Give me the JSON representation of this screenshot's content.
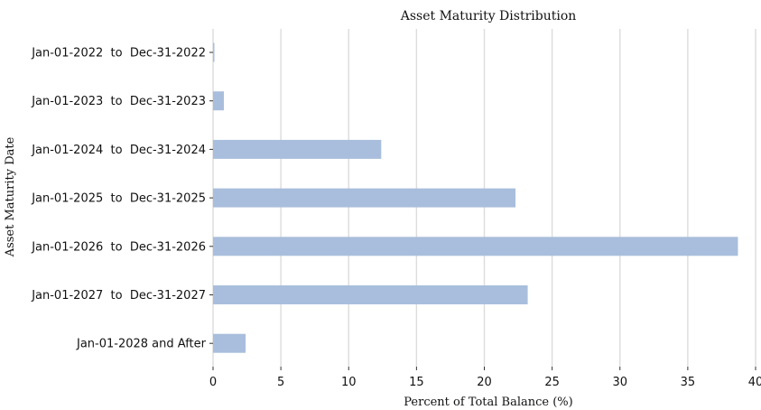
{
  "chart_data": {
    "type": "bar",
    "orientation": "horizontal",
    "title": "Asset Maturity Distribution",
    "xlabel": "Percent of Total Balance (%)",
    "ylabel": "Asset Maturity Date",
    "categories": [
      "Jan-01-2022  to  Dec-31-2022",
      "Jan-01-2023  to  Dec-31-2023",
      "Jan-01-2024  to  Dec-31-2024",
      "Jan-01-2025  to  Dec-31-2025",
      "Jan-01-2026  to  Dec-31-2026",
      "Jan-01-2027  to  Dec-31-2027",
      "Jan-01-2028 and After"
    ],
    "values": [
      0.1,
      0.8,
      12.4,
      22.3,
      38.7,
      23.2,
      2.4
    ],
    "xlim": [
      0,
      40
    ],
    "xticks": [
      0,
      5,
      10,
      15,
      20,
      25,
      30,
      35,
      40
    ],
    "grid": "vertical",
    "bar_color": "#a9bedc"
  }
}
